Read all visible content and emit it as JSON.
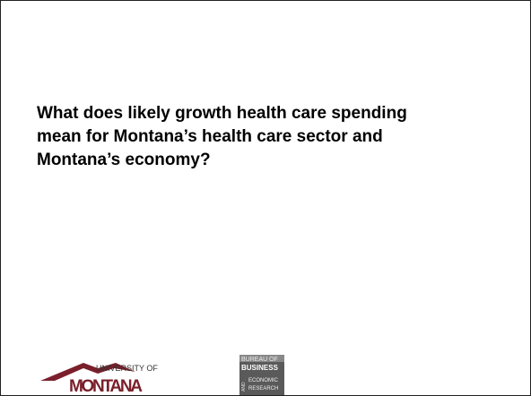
{
  "slide": {
    "heading_lines": [
      "What does likely growth health care spending",
      "mean for Montana’s health care sector and",
      "Montana’s economy?"
    ],
    "logos": {
      "university": {
        "top": "UNIVERSITY OF",
        "name": "MONTANA"
      },
      "bureau": {
        "line1": "BUREAU OF",
        "line2": "BUSINESS",
        "and": "AND",
        "line3": "ECONOMIC",
        "line4": "RESEARCH"
      }
    }
  }
}
